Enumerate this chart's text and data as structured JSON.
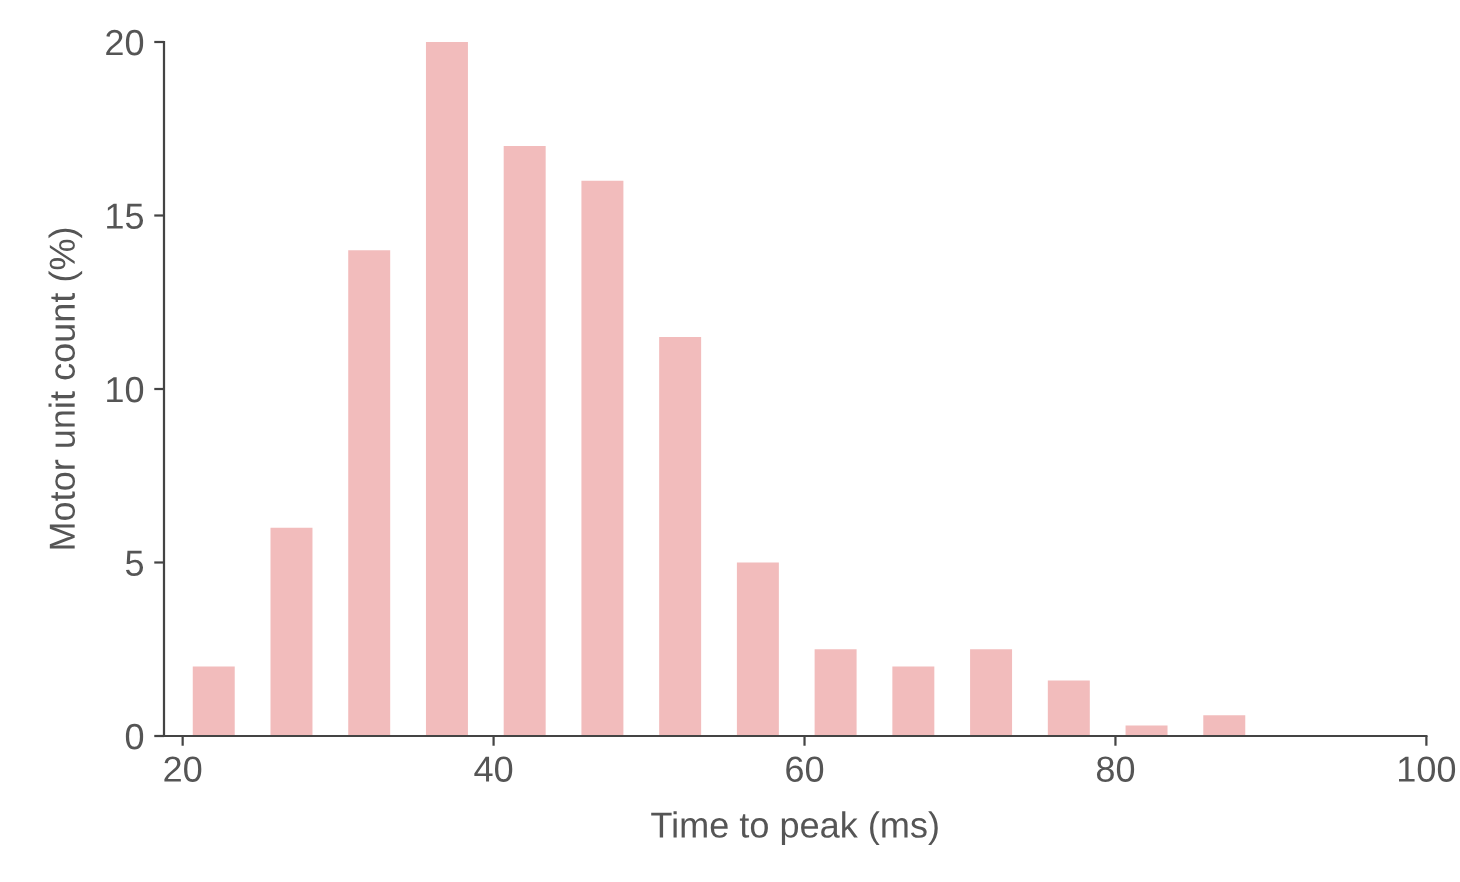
{
  "chart_data": {
    "type": "bar",
    "xlabel": "Time to peak (ms)",
    "ylabel": "Motor unit count (%)",
    "x": [
      22,
      27,
      32,
      37,
      42,
      47,
      52,
      57,
      62,
      67,
      72,
      77,
      82,
      87
    ],
    "values": [
      2,
      6,
      14,
      20,
      17,
      16,
      11.5,
      5,
      2.5,
      2,
      2.5,
      1.6,
      0.3,
      0.6
    ],
    "color": "#f2bcbc",
    "xlim": [
      18.8,
      100
    ],
    "ylim": [
      0,
      20
    ],
    "xticks": [
      20,
      40,
      60,
      80,
      100
    ],
    "yticks": [
      0,
      5,
      10,
      15,
      20
    ],
    "grid": false
  }
}
